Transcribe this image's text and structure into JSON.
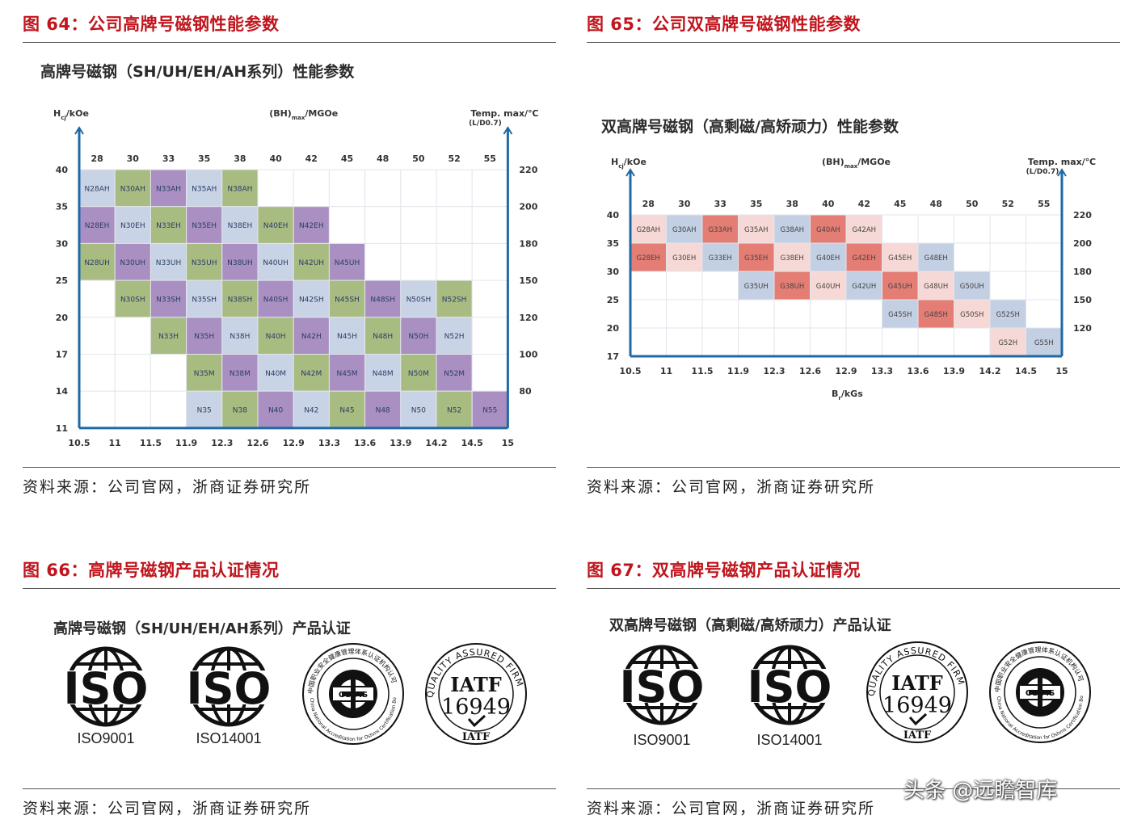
{
  "fig64": {
    "title": "图 64：公司高牌号磁钢性能参数",
    "subtitle": "高牌号磁钢（SH/UH/EH/AH系列）性能参数",
    "source": "资料来源：公司官网，浙商证券研究所"
  },
  "fig65": {
    "title": "图 65：公司双高牌号磁钢性能参数",
    "subtitle": "双高牌号磁钢（高剩磁/高矫顽力）性能参数",
    "source": "资料来源：公司官网，浙商证券研究所"
  },
  "fig66": {
    "title": "图 66：高牌号磁钢产品认证情况",
    "subtitle": "高牌号磁钢（SH/UH/EH/AH系列）产品认证",
    "labels": [
      "ISO9001",
      "ISO14001"
    ],
    "source": "资料来源：公司官网，浙商证券研究所"
  },
  "fig67": {
    "title": "图 67：双高牌号磁钢产品认证情况",
    "subtitle": "双高牌号磁钢（高剩磁/高矫顽力）产品认证",
    "labels": [
      "ISO9001",
      "ISO14001"
    ],
    "source": "资料来源：公司官网，浙商证券研究所"
  },
  "logos": {
    "iso": "ISO",
    "iatf_top": "QUALITY ASSURED FIRM",
    "iatf_main": "IATF",
    "iatf_num": "16949",
    "iatf_bottom": "IATF",
    "osms_cn": "中国职业安全健康管理体系认证机构认可",
    "osms_en": "China National Accreditation for Oshms Certification Bodies",
    "osms_mark": "OS MS"
  },
  "watermark": "头条 @远瞻智库",
  "colors": {
    "title_red": "#c0151d",
    "axis_blue": "#1f6aa5",
    "cell_lightblue": "#c9d3e6",
    "cell_green": "#a8bb80",
    "cell_purple": "#a98fc2",
    "cell_blank": "#ffffff",
    "heat_light": "#f6d9d6",
    "heat_mid": "#eea49e",
    "heat_strong": "#e47d74",
    "heat_blue": "#c3cfe2"
  },
  "chart_data": [
    {
      "type": "heatmap",
      "y_left_label": "Hcj/kOe",
      "x_top_label": "(BH)max/MGOe",
      "y_right_label": "Temp. max/℃",
      "y_right_sublabel": "(L/D0.7)",
      "x_ticks": [
        "10.5",
        "11",
        "11.5",
        "11.9",
        "12.3",
        "12.6",
        "12.9",
        "13.3",
        "13.6",
        "13.9",
        "14.2",
        "14.5",
        "15"
      ],
      "top_ticks": [
        "28",
        "30",
        "33",
        "35",
        "38",
        "40",
        "42",
        "45",
        "48",
        "50",
        "52",
        "55"
      ],
      "y_left_ticks": [
        "40",
        "35",
        "30",
        "25",
        "20",
        "17",
        "14",
        "11"
      ],
      "y_right_ticks": [
        "220",
        "200",
        "180",
        "150",
        "120",
        "100",
        "80"
      ],
      "rows": [
        [
          "N28AH",
          "N30AH",
          "N33AH",
          "N35AH",
          "N38AH",
          "",
          "",
          "",
          "",
          "",
          "",
          ""
        ],
        [
          "N28EH",
          "N30EH",
          "N33EH",
          "N35EH",
          "N38EH",
          "N40EH",
          "N42EH",
          "",
          "",
          "",
          "",
          ""
        ],
        [
          "N28UH",
          "N30UH",
          "N33UH",
          "N35UH",
          "N38UH",
          "N40UH",
          "N42UH",
          "N45UH",
          "",
          "",
          "",
          ""
        ],
        [
          "",
          "N30SH",
          "N33SH",
          "N35SH",
          "N38SH",
          "N40SH",
          "N42SH",
          "N45SH",
          "N48SH",
          "N50SH",
          "N52SH",
          ""
        ],
        [
          "",
          "",
          "N33H",
          "N35H",
          "N38H",
          "N40H",
          "N42H",
          "N45H",
          "N48H",
          "N50H",
          "N52H",
          ""
        ],
        [
          "",
          "",
          "",
          "N35M",
          "N38M",
          "N40M",
          "N42M",
          "N45M",
          "N48M",
          "N50M",
          "N52M",
          ""
        ],
        [
          "",
          "",
          "",
          "N35",
          "N38",
          "N40",
          "N42",
          "N45",
          "N48",
          "N50",
          "N52",
          "N55"
        ]
      ],
      "colors": [
        [
          "b",
          "g",
          "p",
          "b",
          "g",
          "w",
          "w",
          "w",
          "w",
          "w",
          "w",
          "w"
        ],
        [
          "p",
          "b",
          "g",
          "p",
          "b",
          "g",
          "p",
          "w",
          "w",
          "w",
          "w",
          "w"
        ],
        [
          "g",
          "p",
          "b",
          "g",
          "p",
          "b",
          "g",
          "p",
          "w",
          "w",
          "w",
          "w"
        ],
        [
          "w",
          "g",
          "p",
          "b",
          "g",
          "p",
          "b",
          "g",
          "p",
          "b",
          "g",
          "w"
        ],
        [
          "w",
          "w",
          "g",
          "p",
          "b",
          "g",
          "p",
          "b",
          "g",
          "p",
          "b",
          "w"
        ],
        [
          "w",
          "w",
          "w",
          "g",
          "p",
          "b",
          "g",
          "p",
          "b",
          "g",
          "p",
          "w"
        ],
        [
          "w",
          "w",
          "w",
          "b",
          "g",
          "p",
          "b",
          "g",
          "p",
          "b",
          "g",
          "p"
        ]
      ]
    },
    {
      "type": "heatmap",
      "y_left_label": "Hcj/kOe",
      "x_top_label": "(BH)max/MGOe",
      "y_right_label": "Temp. max/℃",
      "y_right_sublabel": "(L/D0.7)",
      "x_label": "Br/kGs",
      "x_ticks": [
        "10.5",
        "11",
        "11.5",
        "11.9",
        "12.3",
        "12.6",
        "12.9",
        "13.3",
        "13.6",
        "13.9",
        "14.2",
        "14.5",
        "15"
      ],
      "top_ticks": [
        "28",
        "30",
        "33",
        "35",
        "38",
        "40",
        "42",
        "45",
        "48",
        "50",
        "52",
        "55"
      ],
      "y_left_ticks": [
        "40",
        "35",
        "30",
        "25",
        "20",
        "17"
      ],
      "y_right_ticks": [
        "220",
        "200",
        "180",
        "150",
        "120"
      ],
      "rows": [
        [
          "G28AH",
          "G30AH",
          "G33AH",
          "G35AH",
          "G38AH",
          "G40AH",
          "G42AH",
          "",
          "",
          "",
          "",
          ""
        ],
        [
          "G28EH",
          "G30EH",
          "G33EH",
          "G35EH",
          "G38EH",
          "G40EH",
          "G42EH",
          "G45EH",
          "G48EH",
          "",
          "",
          ""
        ],
        [
          "",
          "",
          "",
          "G35UH",
          "G38UH",
          "G40UH",
          "G42UH",
          "G45UH",
          "G48UH",
          "G50UH",
          "",
          ""
        ],
        [
          "",
          "",
          "",
          "",
          "",
          "",
          "",
          "G45SH",
          "G48SH",
          "G50SH",
          "G52SH",
          ""
        ],
        [
          "",
          "",
          "",
          "",
          "",
          "",
          "",
          "",
          "",
          "",
          "G52H",
          "G55H"
        ]
      ],
      "colors": [
        [
          "l",
          "b",
          "s",
          "l",
          "b",
          "s",
          "l",
          "w",
          "w",
          "w",
          "w",
          "w"
        ],
        [
          "s",
          "l",
          "b",
          "s",
          "l",
          "b",
          "s",
          "l",
          "b",
          "w",
          "w",
          "w"
        ],
        [
          "w",
          "w",
          "w",
          "b",
          "s",
          "l",
          "b",
          "s",
          "l",
          "b",
          "w",
          "w"
        ],
        [
          "w",
          "w",
          "w",
          "w",
          "w",
          "w",
          "w",
          "b",
          "s",
          "l",
          "b",
          "w"
        ],
        [
          "w",
          "w",
          "w",
          "w",
          "w",
          "w",
          "w",
          "w",
          "w",
          "w",
          "l",
          "b"
        ]
      ]
    }
  ]
}
